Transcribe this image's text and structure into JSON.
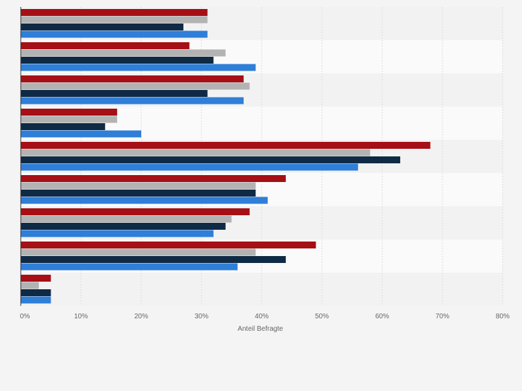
{
  "chart_data": {
    "type": "bar",
    "orientation": "horizontal",
    "title": "",
    "xlabel": "Anteil Befragte",
    "ylabel": "",
    "xlim": [
      0,
      80
    ],
    "x_tick_labels": [
      "0%",
      "10%",
      "20%",
      "30%",
      "40%",
      "50%",
      "60%",
      "70%",
      "80%"
    ],
    "x_tick_values": [
      0,
      10,
      20,
      30,
      40,
      50,
      60,
      70,
      80
    ],
    "grid": true,
    "legend": "none",
    "category_count": 9,
    "series": [
      {
        "color": "#a50f15",
        "values": [
          31,
          28,
          37,
          16,
          68,
          44,
          38,
          49,
          5
        ]
      },
      {
        "color": "#b3b3b3",
        "values": [
          31,
          34,
          38,
          16,
          58,
          39,
          35,
          39,
          3
        ]
      },
      {
        "color": "#0f2a44",
        "values": [
          27,
          32,
          31,
          14,
          63,
          39,
          34,
          44,
          5
        ]
      },
      {
        "color": "#2f7ed8",
        "values": [
          31,
          39,
          37,
          20,
          56,
          41,
          32,
          36,
          5
        ]
      }
    ]
  },
  "colors": {
    "band_dark": "#f2f2f2",
    "band_light": "#fafafa",
    "grid": "#dcdcdc",
    "axis": "#333333",
    "tick_text": "#666666"
  }
}
